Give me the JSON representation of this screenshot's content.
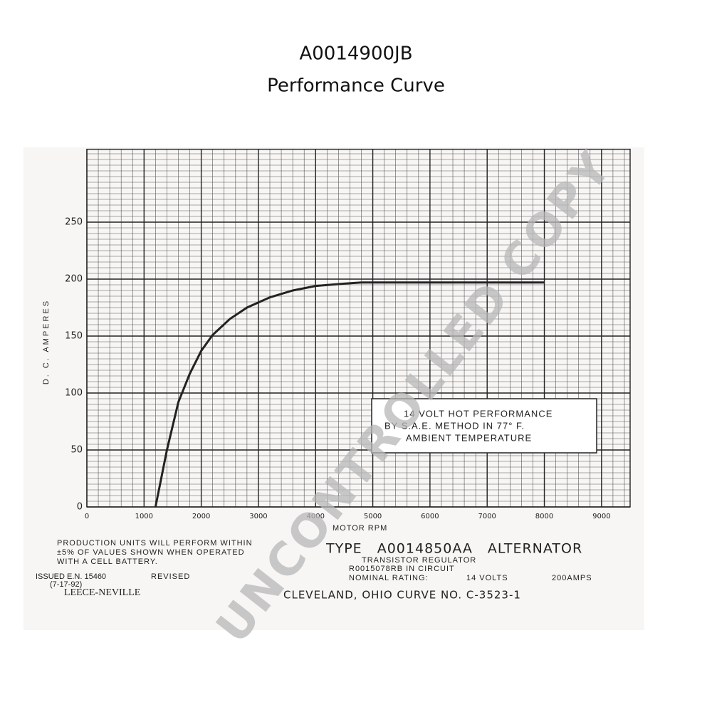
{
  "chart_data": {
    "type": "line",
    "title": "A0014900JB",
    "subtitle": "Performance Curve",
    "x_label": "MOTOR RPM",
    "y_label": "D. C. AMPERES",
    "x": [
      1200,
      1300,
      1400,
      1600,
      1800,
      2000,
      2200,
      2500,
      2800,
      3200,
      3600,
      4000,
      4500,
      4800,
      5000,
      6000,
      7000,
      8000
    ],
    "series": [
      {
        "name": "14 VOLT HOT PERFORMANCE",
        "color": "#222222",
        "values": [
          0,
          25,
          50,
          92,
          117,
          137,
          151,
          165,
          175,
          184,
          190,
          194,
          196,
          197,
          197,
          197,
          197,
          197
        ]
      }
    ],
    "xlim": [
      0,
      9500
    ],
    "ylim": [
      0,
      314
    ],
    "xticks": [
      0,
      1000,
      2000,
      3000,
      4000,
      5000,
      6000,
      7000,
      8000,
      9000
    ],
    "yticks": [
      0,
      50,
      100,
      150,
      200,
      250
    ],
    "grid": true,
    "annotation": [
      "14 VOLT HOT PERFORMANCE",
      "BY S.A.E. METHOD IN 77° F.",
      "AMBIENT TEMPERATURE"
    ]
  },
  "footer": {
    "note": [
      "PRODUCTION UNITS WILL PERFORM WITHIN",
      "±5% OF VALUES SHOWN WHEN OPERATED",
      "WITH A CELL BATTERY."
    ],
    "issued": "ISSUED E.N. 15460",
    "date": "(7-17-92)",
    "revised": "REVISED",
    "maker": "LEECE-NEVILLE",
    "type": "TYPE A0014850AA ALTERNATOR",
    "regulator": "TRANSISTOR REGULATOR",
    "circuit": "R0015078RB IN CIRCUIT",
    "rating": "NOMINAL RATING:",
    "volts": "14 VOLTS",
    "amps": "200AMPS",
    "curve": "CLEVELAND, OHIO CURVE NO. C-3523-1"
  },
  "watermark": "UNCONTROLLED COPY"
}
